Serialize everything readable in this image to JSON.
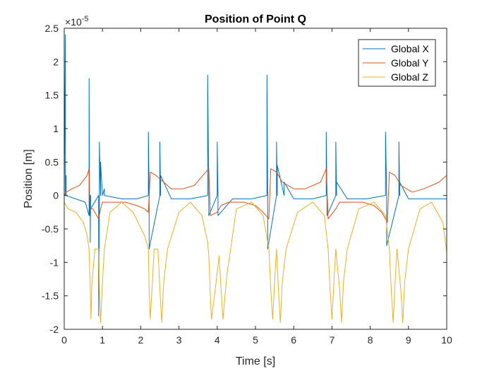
{
  "chart_data": {
    "type": "line",
    "title": "Position of Point Q",
    "xlabel": "Time [s]",
    "ylabel": "Position [m]",
    "exponent_base": "×10",
    "exponent_power": "-5",
    "xlim": [
      0,
      10
    ],
    "ylim": [
      -2,
      2.5
    ],
    "xticks": [
      "0",
      "1",
      "2",
      "3",
      "4",
      "5",
      "6",
      "7",
      "8",
      "9",
      "10"
    ],
    "yticks": [
      "-2",
      "-1.5",
      "-1",
      "-0.5",
      "0",
      "0.5",
      "1",
      "1.5",
      "2",
      "2.5"
    ],
    "legend_position": "top-right",
    "grid": false,
    "series": [
      {
        "name": "Global X",
        "color": "#0072BD",
        "x": [
          0,
          0.03,
          0.03,
          0.05,
          0.05,
          0.3,
          0.55,
          0.65,
          0.65,
          0.66,
          0.66,
          0.68,
          0.68,
          0.69,
          0.69,
          0.9,
          0.9,
          0.92,
          0.92,
          0.95,
          0.95,
          1.0,
          1.0,
          1.05,
          1.05,
          1.5,
          1.9,
          2.2,
          2.2,
          2.22,
          2.22,
          2.5,
          2.5,
          2.52,
          2.52,
          2.8,
          3.3,
          3.75,
          3.75,
          3.78,
          3.78,
          4.0,
          4.0,
          4.02,
          4.02,
          4.4,
          4.9,
          5.3,
          5.3,
          5.32,
          5.32,
          5.55,
          5.55,
          5.57,
          5.57,
          5.75,
          5.75,
          6.0,
          6.5,
          6.85,
          6.85,
          6.87,
          6.87,
          7.1,
          7.1,
          7.12,
          7.12,
          7.4,
          7.9,
          8.4,
          8.4,
          8.43,
          8.43,
          8.75,
          8.75,
          8.77,
          8.77,
          9.0,
          9.5,
          10.0
        ],
        "values": [
          0,
          2.4,
          0,
          0.3,
          0,
          -0.05,
          -0.1,
          -0.3,
          1.75,
          0,
          -0.3,
          0,
          -0.7,
          0,
          -0.2,
          0,
          -1.8,
          0,
          0.8,
          0,
          0.5,
          0,
          0,
          0.1,
          0,
          -0.05,
          -0.05,
          0,
          0.95,
          0,
          -0.8,
          0,
          0.8,
          0,
          0.3,
          -0.05,
          -0.05,
          0,
          1.8,
          0,
          -0.3,
          0,
          0.8,
          0,
          -0.3,
          -0.05,
          -0.05,
          0,
          1.8,
          0,
          -0.8,
          0,
          0.8,
          0,
          0.45,
          0,
          0.2,
          -0.05,
          -0.05,
          0,
          0.95,
          0,
          -0.3,
          0,
          0.8,
          0,
          0.2,
          -0.05,
          -0.05,
          0,
          0.95,
          0,
          -0.75,
          0,
          0.8,
          0,
          0.2,
          -0.05,
          -0.05,
          -0.05
        ]
      },
      {
        "name": "Global Y",
        "color": "#D95319",
        "x": [
          0,
          0.05,
          0.2,
          0.4,
          0.6,
          0.65,
          0.67,
          0.75,
          0.9,
          0.95,
          1.0,
          1.2,
          1.6,
          1.9,
          2.1,
          2.2,
          2.25,
          2.4,
          2.6,
          2.8,
          3.1,
          3.4,
          3.7,
          3.78,
          3.82,
          4.0,
          4.1,
          4.3,
          4.7,
          5.0,
          5.2,
          5.35,
          5.4,
          5.55,
          5.7,
          6.0,
          6.3,
          6.7,
          6.85,
          6.9,
          7.1,
          7.2,
          7.4,
          7.8,
          8.1,
          8.3,
          8.45,
          8.5,
          8.65,
          8.8,
          9.1,
          9.4,
          9.8,
          10.0
        ],
        "values": [
          0,
          0.05,
          0.1,
          0.15,
          0.3,
          0.4,
          -0.2,
          -0.2,
          -0.35,
          -0.2,
          -0.1,
          -0.1,
          -0.1,
          -0.15,
          -0.2,
          -0.25,
          0.35,
          0.3,
          0.2,
          0.1,
          0.1,
          0.15,
          0.35,
          0.4,
          -0.3,
          -0.25,
          -0.15,
          -0.1,
          -0.1,
          -0.15,
          -0.25,
          -0.35,
          0.4,
          0.35,
          0.2,
          0.1,
          0.1,
          0.2,
          0.4,
          -0.35,
          -0.2,
          -0.1,
          -0.1,
          -0.1,
          -0.15,
          -0.25,
          -0.4,
          0.35,
          0.3,
          0.15,
          0.05,
          0.1,
          0.2,
          0.3
        ]
      },
      {
        "name": "Global Z",
        "color": "#EDB120",
        "x": [
          0,
          0.1,
          0.3,
          0.5,
          0.6,
          0.65,
          0.68,
          0.7,
          0.72,
          0.8,
          0.9,
          0.92,
          0.95,
          1.0,
          1.05,
          1.2,
          1.5,
          1.8,
          2.1,
          2.2,
          2.22,
          2.25,
          2.3,
          2.35,
          2.45,
          2.5,
          2.55,
          2.6,
          2.7,
          3.0,
          3.3,
          3.6,
          3.75,
          3.78,
          3.82,
          3.85,
          3.95,
          4.05,
          4.1,
          4.15,
          4.25,
          4.5,
          4.9,
          5.2,
          5.35,
          5.4,
          5.45,
          5.5,
          5.55,
          5.6,
          5.65,
          5.7,
          5.8,
          6.1,
          6.5,
          6.8,
          6.9,
          6.95,
          7.0,
          7.05,
          7.1,
          7.2,
          7.25,
          7.3,
          7.4,
          7.7,
          8.1,
          8.4,
          8.5,
          8.55,
          8.6,
          8.65,
          8.7,
          8.8,
          8.85,
          8.9,
          9.0,
          9.3,
          9.6,
          9.9,
          10.0
        ],
        "values": [
          -0.1,
          -0.2,
          -0.25,
          -0.4,
          -0.6,
          -0.8,
          -1.4,
          -1.85,
          -1.35,
          -0.8,
          -0.8,
          -1.4,
          -1.9,
          -1.3,
          -0.8,
          -0.25,
          -0.1,
          -0.25,
          -0.6,
          -0.8,
          -1.4,
          -1.85,
          -1.35,
          -0.8,
          -0.8,
          -1.4,
          -1.9,
          -1.3,
          -0.8,
          -0.25,
          -0.1,
          -0.3,
          -0.7,
          -0.9,
          -1.5,
          -1.85,
          -1.4,
          -0.9,
          -1.4,
          -1.85,
          -1.2,
          -0.2,
          -0.1,
          -0.3,
          -0.8,
          -1.4,
          -1.85,
          -1.3,
          -0.8,
          -1.4,
          -1.9,
          -1.3,
          -0.8,
          -0.25,
          -0.1,
          -0.3,
          -0.8,
          -1.4,
          -1.85,
          -1.3,
          -0.8,
          -1.4,
          -1.9,
          -1.3,
          -0.8,
          -0.2,
          -0.1,
          -0.3,
          -0.8,
          -1.4,
          -1.9,
          -1.3,
          -0.8,
          -1.4,
          -1.9,
          -1.3,
          -0.8,
          -0.2,
          -0.1,
          -0.4,
          -0.85
        ]
      }
    ]
  }
}
